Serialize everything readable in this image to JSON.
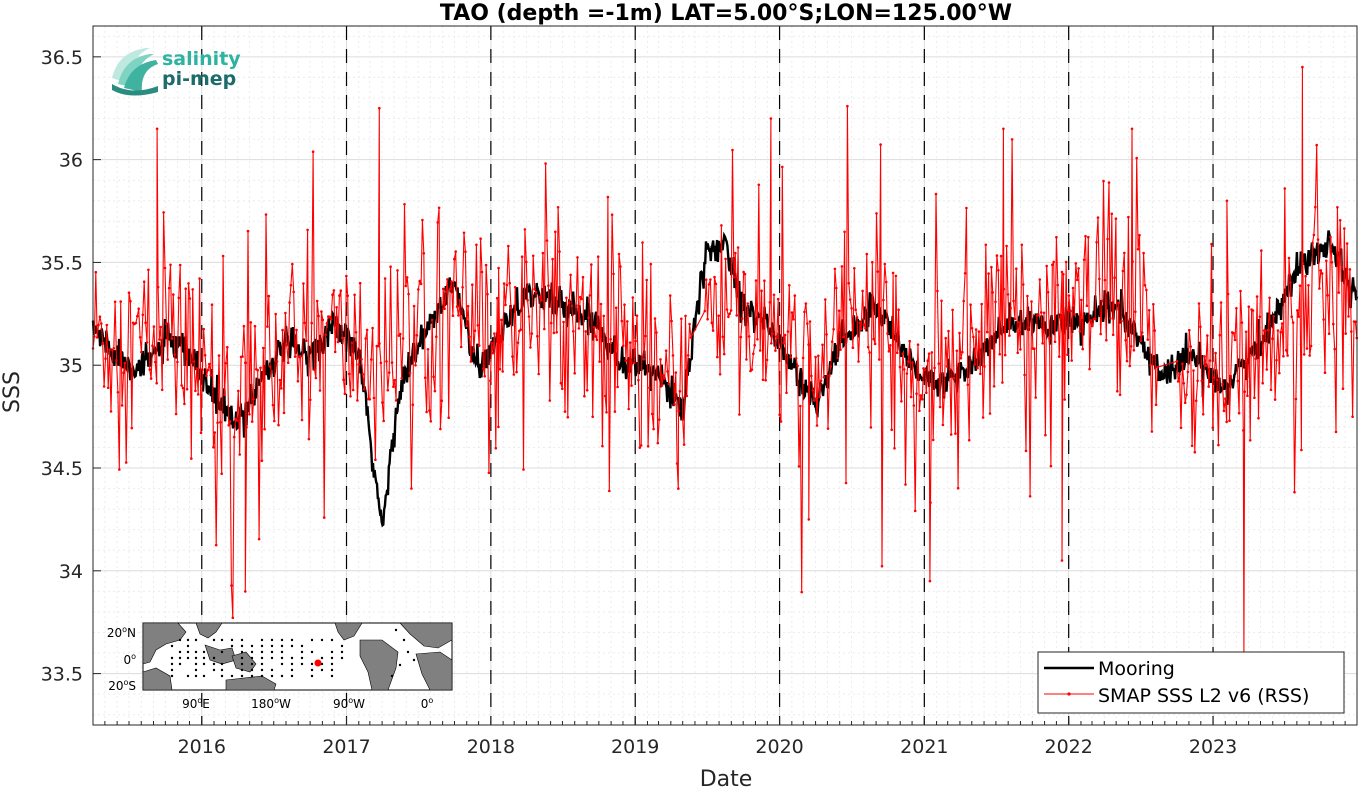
{
  "chart_data": {
    "type": "line",
    "title": "TAO (depth =-1m) LAT=5.00°S;LON=125.00°W",
    "xlabel": "Date",
    "ylabel": "SSS",
    "xlim": [
      "2015-04-01",
      "2023-12-31"
    ],
    "ylim": [
      33.25,
      36.65
    ],
    "x_ticks": [
      "2016",
      "2017",
      "2018",
      "2019",
      "2020",
      "2021",
      "2022",
      "2023"
    ],
    "x_tick_dates": [
      "2016-01-01",
      "2017-01-01",
      "2018-01-01",
      "2019-01-01",
      "2020-01-01",
      "2021-01-01",
      "2022-01-01",
      "2023-01-01"
    ],
    "y_ticks": [
      "33.5",
      "34",
      "34.5",
      "35",
      "35.5",
      "36",
      "36.5"
    ],
    "grid": true,
    "year_marker_lines": "dashed vertical at each January 1",
    "legend_placement": "bottom-right",
    "series": [
      {
        "name": "Mooring",
        "color": "#000000",
        "style": "thick line",
        "points": [
          [
            "2015-04-01",
            35.18
          ],
          [
            "2015-06-01",
            35.05
          ],
          [
            "2015-08-01",
            34.98
          ],
          [
            "2015-10-01",
            35.12
          ],
          [
            "2015-12-01",
            35.05
          ],
          [
            "2016-02-01",
            34.85
          ],
          [
            "2016-04-01",
            34.7
          ],
          [
            "2016-06-01",
            34.95
          ],
          [
            "2016-08-01",
            35.1
          ],
          [
            "2016-10-01",
            35.05
          ],
          [
            "2016-12-01",
            35.2
          ],
          [
            "2017-02-01",
            35.05
          ],
          [
            "2017-04-01",
            34.2
          ],
          [
            "2017-05-15",
            34.9
          ],
          [
            "2017-08-01",
            35.2
          ],
          [
            "2017-10-01",
            35.4
          ],
          [
            "2017-12-01",
            34.95
          ],
          [
            "2018-02-01",
            35.2
          ],
          [
            "2018-04-01",
            35.35
          ],
          [
            "2018-07-01",
            35.3
          ],
          [
            "2018-10-01",
            35.2
          ],
          [
            "2018-12-01",
            35.0
          ],
          [
            "2019-02-01",
            35.0
          ],
          [
            "2019-05-01",
            34.8
          ],
          [
            "2019-07-01",
            35.55
          ],
          [
            "2019-08-15",
            35.6
          ],
          [
            "2019-10-01",
            35.3
          ],
          [
            "2019-12-01",
            35.2
          ],
          [
            "2020-02-01",
            35.0
          ],
          [
            "2020-04-01",
            34.8
          ],
          [
            "2020-06-01",
            35.1
          ],
          [
            "2020-09-01",
            35.3
          ],
          [
            "2020-12-01",
            35.0
          ],
          [
            "2021-02-01",
            34.9
          ],
          [
            "2021-05-01",
            35.0
          ],
          [
            "2021-08-01",
            35.2
          ],
          [
            "2021-11-01",
            35.2
          ],
          [
            "2022-02-01",
            35.2
          ],
          [
            "2022-05-01",
            35.3
          ],
          [
            "2022-07-01",
            35.1
          ],
          [
            "2022-09-01",
            34.95
          ],
          [
            "2022-11-01",
            35.05
          ],
          [
            "2023-02-01",
            34.9
          ],
          [
            "2023-05-01",
            35.1
          ],
          [
            "2023-07-01",
            35.35
          ],
          [
            "2023-09-01",
            35.55
          ],
          [
            "2023-11-01",
            35.6
          ],
          [
            "2023-12-31",
            35.3
          ]
        ]
      },
      {
        "name": "SMAP SSS L2 v6 (RSS)",
        "color": "#ff0000",
        "style": "thin line with dot markers",
        "baseline": [
          [
            "2015-04-01",
            35.15
          ],
          [
            "2015-07-01",
            35.1
          ],
          [
            "2015-10-01",
            35.15
          ],
          [
            "2016-01-01",
            35.0
          ],
          [
            "2016-04-01",
            34.75
          ],
          [
            "2016-07-01",
            35.0
          ],
          [
            "2016-10-01",
            35.15
          ],
          [
            "2017-01-01",
            35.1
          ],
          [
            "2017-04-01",
            35.0
          ],
          [
            "2017-07-01",
            35.2
          ],
          [
            "2017-10-01",
            35.3
          ],
          [
            "2018-01-01",
            35.1
          ],
          [
            "2018-04-01",
            35.3
          ],
          [
            "2018-07-01",
            35.25
          ],
          [
            "2018-10-01",
            35.2
          ],
          [
            "2019-01-01",
            35.05
          ],
          [
            "2019-04-01",
            34.85
          ],
          [
            "2019-07-01",
            35.3
          ],
          [
            "2019-10-01",
            35.2
          ],
          [
            "2020-01-01",
            35.1
          ],
          [
            "2020-04-01",
            34.9
          ],
          [
            "2020-07-01",
            35.25
          ],
          [
            "2020-10-01",
            35.2
          ],
          [
            "2021-01-01",
            34.95
          ],
          [
            "2021-04-01",
            35.0
          ],
          [
            "2021-07-01",
            35.2
          ],
          [
            "2021-10-01",
            35.25
          ],
          [
            "2022-01-01",
            35.2
          ],
          [
            "2022-04-01",
            35.3
          ],
          [
            "2022-07-01",
            35.2
          ],
          [
            "2022-10-01",
            35.0
          ],
          [
            "2023-01-01",
            34.95
          ],
          [
            "2023-04-01",
            35.0
          ],
          [
            "2023-07-01",
            35.25
          ],
          [
            "2023-10-01",
            35.4
          ],
          [
            "2023-12-31",
            35.2
          ]
        ],
        "noise_sd": 0.22,
        "extremes": [
          [
            "2015-09-10",
            36.15
          ],
          [
            "2016-04-20",
            33.9
          ],
          [
            "2017-03-25",
            36.25
          ],
          [
            "2018-01-20",
            34.7
          ],
          [
            "2019-04-20",
            34.4
          ],
          [
            "2019-12-10",
            36.2
          ],
          [
            "2020-03-15",
            34.25
          ],
          [
            "2021-01-15",
            33.95
          ],
          [
            "2021-07-20",
            36.15
          ],
          [
            "2021-12-15",
            34.05
          ],
          [
            "2022-06-10",
            36.15
          ],
          [
            "2023-02-05",
            35.8
          ],
          [
            "2023-03-20",
            33.6
          ],
          [
            "2023-08-15",
            36.45
          ]
        ]
      }
    ]
  },
  "inset_map": {
    "lat_labels": [
      "20",
      "0",
      "20"
    ],
    "lat_hemi": [
      "N",
      "",
      "S"
    ],
    "deg_mark": "o",
    "lon_labels": [
      "90",
      "180",
      "90",
      "0"
    ],
    "lon_hemi": [
      "E",
      "W",
      "W",
      ""
    ],
    "land_color": "#808080",
    "ocean_color": "#ffffff",
    "highlight_color": "#ff0000"
  },
  "logo": {
    "line1": "salinity",
    "line2": "pi-mep"
  }
}
